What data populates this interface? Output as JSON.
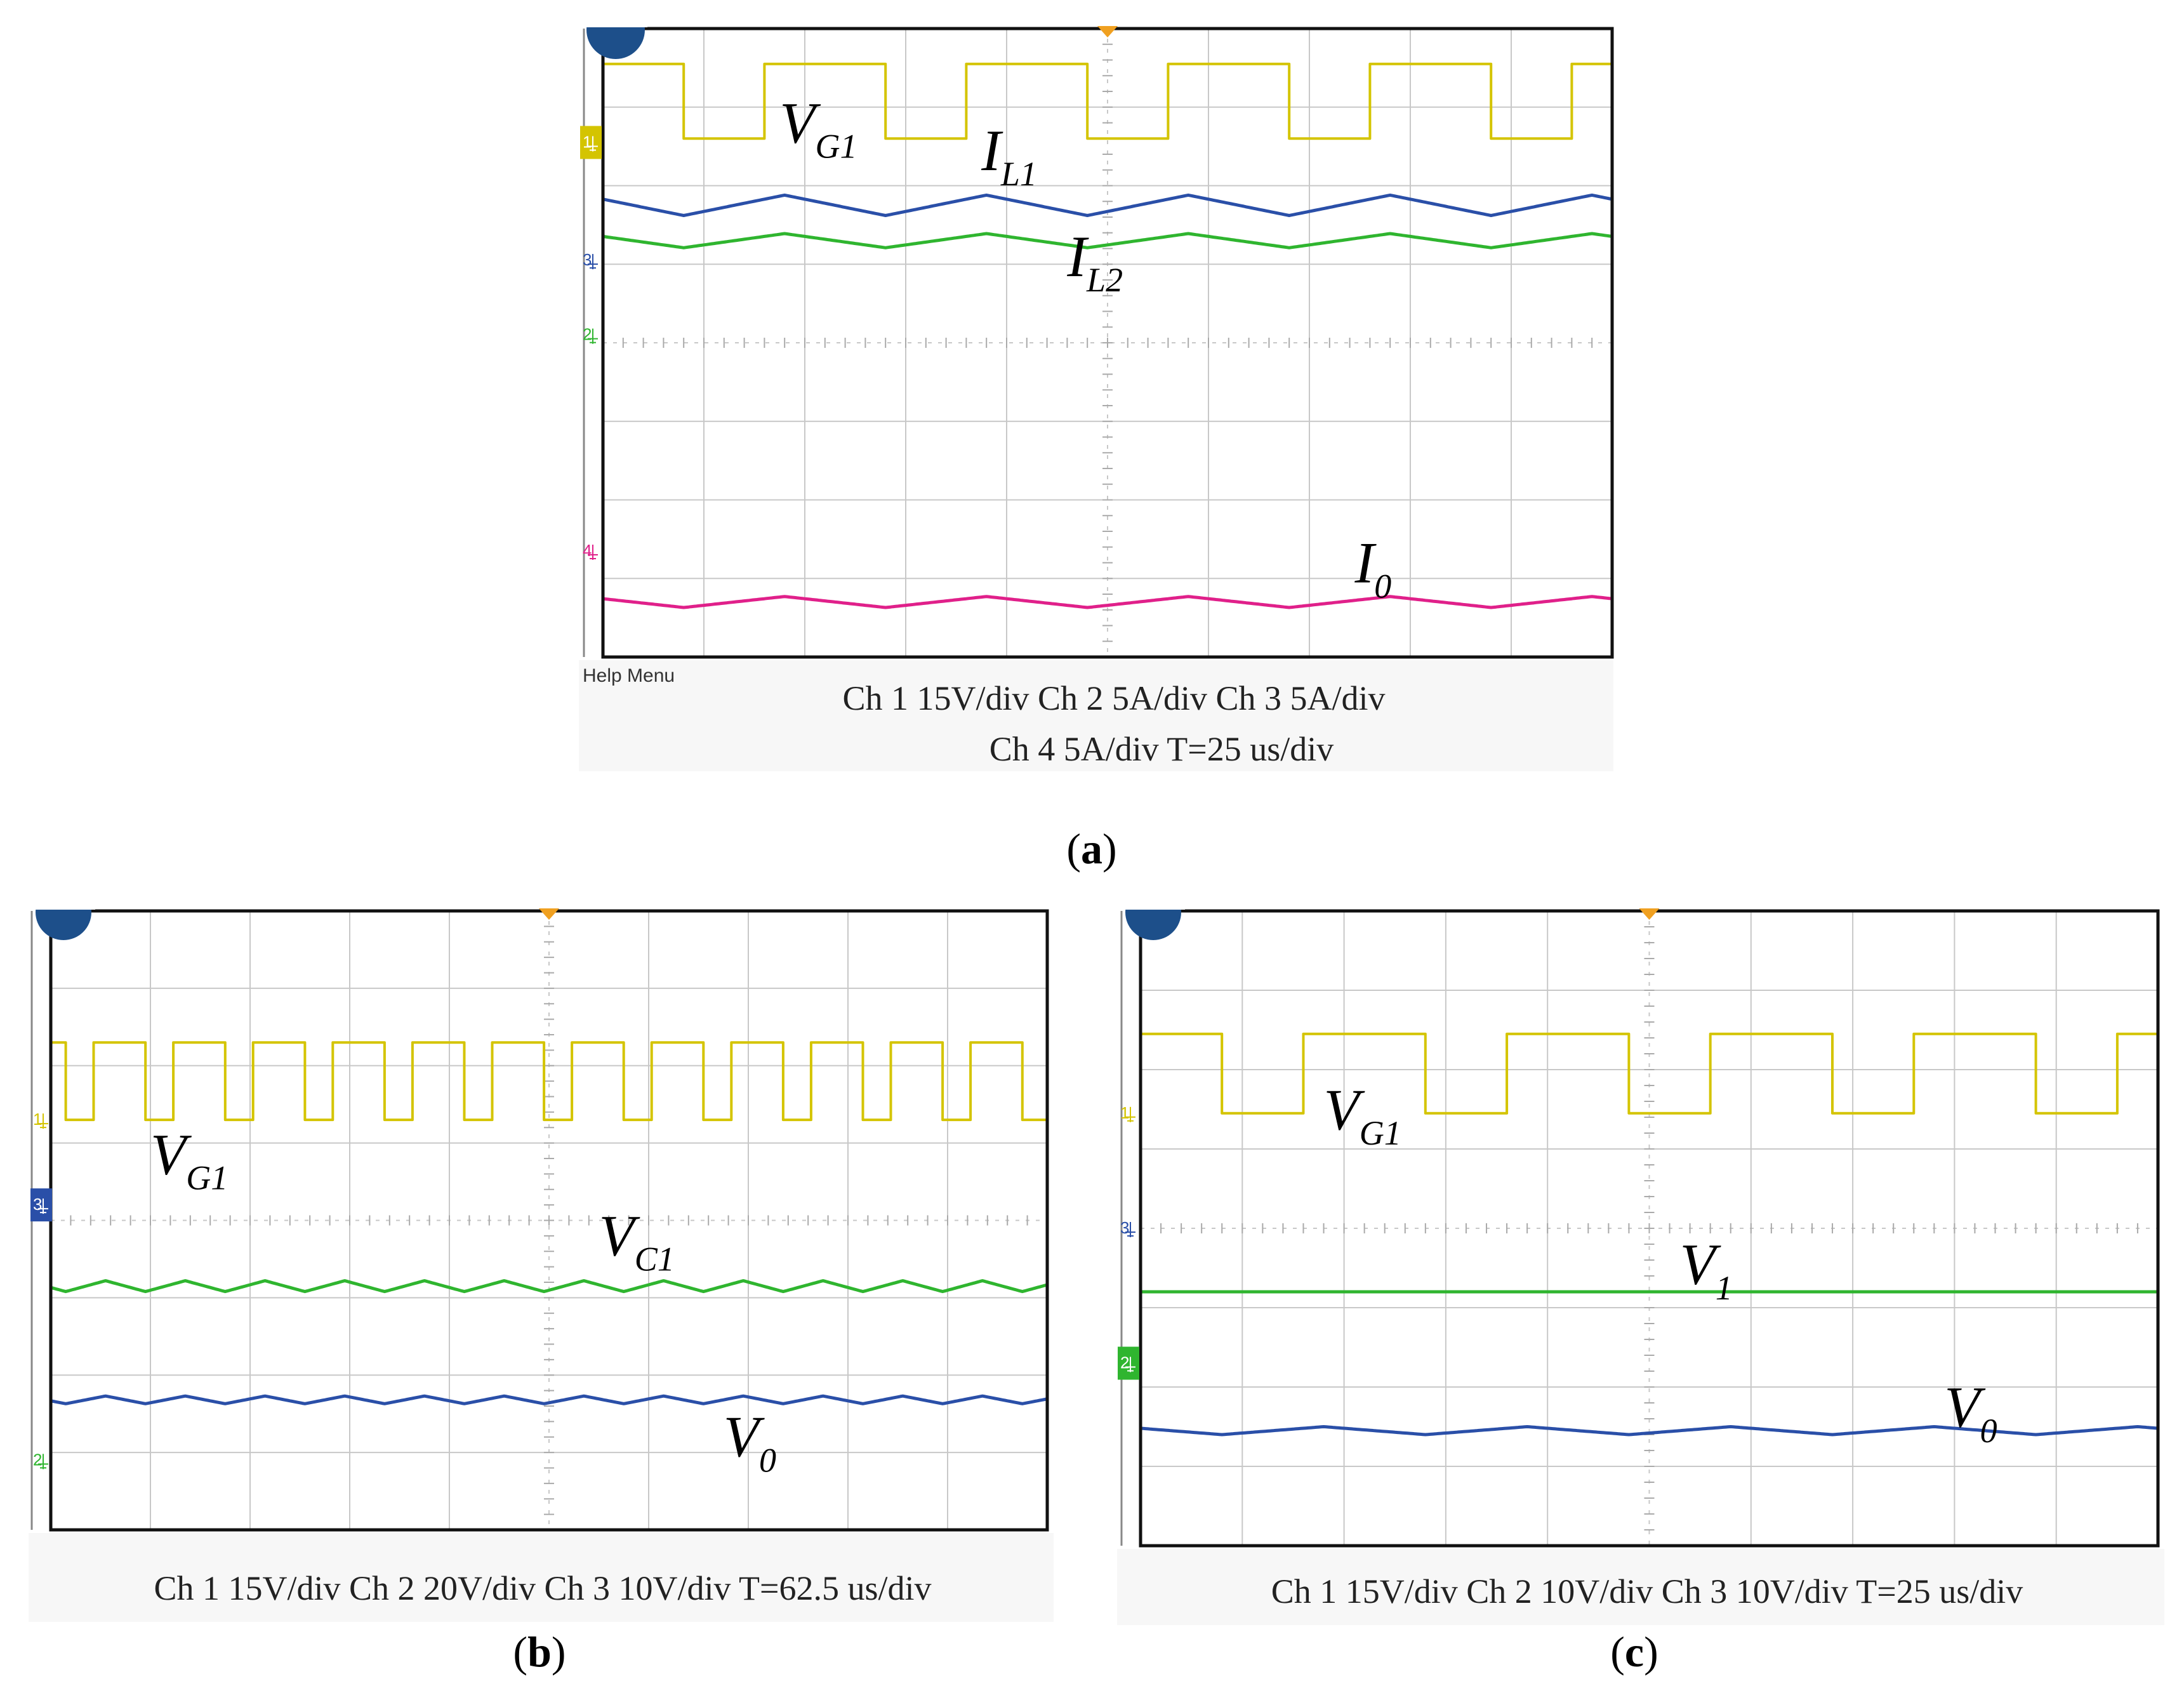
{
  "colors": {
    "ch1": "#d4c400",
    "ch2": "#2fb52f",
    "ch3": "#2a4fa8",
    "ch4": "#e0208a",
    "grid": "#c8c8c8",
    "frame": "#111111",
    "badge": "#1d4f8a",
    "trigger": "#f0a020"
  },
  "chart_data": [
    {
      "id": "a",
      "type": "line",
      "caption_letter": "a",
      "help_text": "Help Menu",
      "settings_line1": "Ch 1 15V/div     Ch 2 5A/div     Ch 3  5A/div",
      "settings_line2": "Ch 4  5A/div     T=25 us/div",
      "xlim": [
        0,
        10
      ],
      "ylim": [
        0,
        8
      ],
      "channel_markers": [
        {
          "text": "1",
          "y": 6.55,
          "color_key": "ch1",
          "boxed": true
        },
        {
          "text": "3",
          "y": 5.05,
          "color_key": "ch3",
          "boxed": false
        },
        {
          "text": "2",
          "y": 4.1,
          "color_key": "ch2",
          "boxed": false
        },
        {
          "text": "4",
          "y": 1.35,
          "color_key": "ch4",
          "boxed": false
        }
      ],
      "series": [
        {
          "name": "V_G1",
          "color_key": "ch1",
          "kind": "square",
          "high": 7.55,
          "low": 6.6,
          "period": 2,
          "duty": 0.6,
          "phase": 0.8
        },
        {
          "name": "I_L1",
          "color_key": "ch3",
          "kind": "triangle",
          "mean": 5.75,
          "amp": 0.13,
          "period": 2,
          "phase": 0.8
        },
        {
          "name": "I_L2",
          "color_key": "ch2",
          "kind": "triangle",
          "mean": 5.3,
          "amp": 0.09,
          "period": 2,
          "phase": 0.8
        },
        {
          "name": "I_0",
          "color_key": "ch4",
          "kind": "triangle",
          "mean": 0.7,
          "amp": 0.07,
          "period": 2,
          "phase": 0.8
        }
      ],
      "labels": [
        {
          "main": "V",
          "sub": "G1",
          "x": 1.75,
          "y": 6.55
        },
        {
          "main": "I",
          "sub": "L1",
          "x": 3.75,
          "y": 6.2
        },
        {
          "main": "I",
          "sub": "L2",
          "x": 4.6,
          "y": 4.85
        },
        {
          "main": "I",
          "sub": "0",
          "x": 7.45,
          "y": 0.95
        }
      ]
    },
    {
      "id": "b",
      "type": "line",
      "caption_letter": "b",
      "help_text": "",
      "settings_line1": "Ch 1 15V/div     Ch 2 20V/div     Ch 3  10V/div     T=62.5 us/div",
      "settings_line2": "",
      "xlim": [
        0,
        10
      ],
      "ylim": [
        0,
        8
      ],
      "channel_markers": [
        {
          "text": "1",
          "y": 5.3,
          "color_key": "ch1",
          "boxed": false
        },
        {
          "text": "3",
          "y": 4.2,
          "color_key": "ch3",
          "boxed": true
        },
        {
          "text": "2",
          "y": 0.9,
          "color_key": "ch2",
          "boxed": false
        }
      ],
      "series": [
        {
          "name": "V_G1",
          "color_key": "ch1",
          "kind": "square",
          "high": 6.3,
          "low": 5.3,
          "period": 0.8,
          "duty": 0.65,
          "phase": 0.15
        },
        {
          "name": "V_C1",
          "color_key": "ch2",
          "kind": "triangle",
          "mean": 3.15,
          "amp": 0.07,
          "period": 0.8,
          "phase": 0.15
        },
        {
          "name": "V_0",
          "color_key": "ch3",
          "kind": "triangle",
          "mean": 1.68,
          "amp": 0.05,
          "period": 0.8,
          "phase": 0.15
        }
      ],
      "labels": [
        {
          "main": "V",
          "sub": "G1",
          "x": 1.0,
          "y": 4.6
        },
        {
          "main": "V",
          "sub": "C1",
          "x": 5.5,
          "y": 3.55
        },
        {
          "main": "V",
          "sub": "0",
          "x": 6.75,
          "y": 0.95
        }
      ]
    },
    {
      "id": "c",
      "type": "line",
      "caption_letter": "c",
      "help_text": "",
      "settings_line1": "Ch 1 15V/div     Ch 2 10V/div     Ch 3  10V/div     T=25 us/div",
      "settings_line2": "",
      "xlim": [
        0,
        10
      ],
      "ylim": [
        0,
        8
      ],
      "channel_markers": [
        {
          "text": "1",
          "y": 5.45,
          "color_key": "ch1",
          "boxed": false
        },
        {
          "text": "3",
          "y": 4.0,
          "color_key": "ch3",
          "boxed": false
        },
        {
          "text": "2",
          "y": 2.3,
          "color_key": "ch2",
          "boxed": true
        }
      ],
      "series": [
        {
          "name": "V_G1",
          "color_key": "ch1",
          "kind": "square",
          "high": 6.45,
          "low": 5.45,
          "period": 2,
          "duty": 0.6,
          "phase": 0.8
        },
        {
          "name": "V_1",
          "color_key": "ch2",
          "kind": "flat",
          "mean": 3.2
        },
        {
          "name": "V_0",
          "color_key": "ch3",
          "kind": "triangle",
          "mean": 1.45,
          "amp": 0.05,
          "period": 2,
          "phase": 0.8
        }
      ],
      "labels": [
        {
          "main": "V",
          "sub": "G1",
          "x": 1.8,
          "y": 5.25
        },
        {
          "main": "V",
          "sub": "1",
          "x": 5.3,
          "y": 3.3
        },
        {
          "main": "V",
          "sub": "0",
          "x": 7.9,
          "y": 1.5
        }
      ]
    }
  ]
}
